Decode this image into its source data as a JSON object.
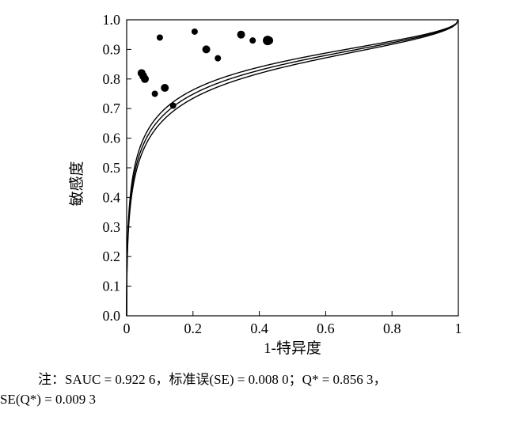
{
  "chart_data": {
    "type": "scatter",
    "xlabel": "1-特异度",
    "ylabel": "敏感度",
    "xlim": [
      0,
      1
    ],
    "ylim": [
      0,
      1
    ],
    "x_ticks": [
      "0",
      "0.2",
      "0.4",
      "0.6",
      "0.8",
      "1"
    ],
    "y_ticks": [
      "0.0",
      "0.1",
      "0.2",
      "0.3",
      "0.4",
      "0.5",
      "0.6",
      "0.7",
      "0.8",
      "0.9",
      "1.0"
    ],
    "grid": false,
    "legend": "none",
    "points": [
      {
        "x": 0.045,
        "y": 0.82,
        "size": 5
      },
      {
        "x": 0.05,
        "y": 0.81,
        "size": 5
      },
      {
        "x": 0.055,
        "y": 0.8,
        "size": 5
      },
      {
        "x": 0.085,
        "y": 0.75,
        "size": 4
      },
      {
        "x": 0.1,
        "y": 0.94,
        "size": 4
      },
      {
        "x": 0.115,
        "y": 0.77,
        "size": 5
      },
      {
        "x": 0.14,
        "y": 0.71,
        "size": 4
      },
      {
        "x": 0.205,
        "y": 0.96,
        "size": 4
      },
      {
        "x": 0.24,
        "y": 0.9,
        "size": 5
      },
      {
        "x": 0.275,
        "y": 0.87,
        "size": 4
      },
      {
        "x": 0.345,
        "y": 0.95,
        "size": 5
      },
      {
        "x": 0.38,
        "y": 0.93,
        "size": 4
      },
      {
        "x": 0.425,
        "y": 0.93,
        "size": 6
      },
      {
        "x": 0.43,
        "y": 0.93,
        "size": 5
      }
    ],
    "curves": [
      {
        "role": "upper",
        "q": 0.8656
      },
      {
        "role": "sroc",
        "q": 0.8563
      },
      {
        "role": "lower",
        "q": 0.847
      }
    ],
    "point_color": "#000000",
    "line_color": "#000000"
  },
  "note": {
    "line1": "注：SAUC = 0.922 6，标准误(SE) = 0.008 0；Q* = 0.856 3，",
    "line2": "SE(Q*) = 0.009 3"
  }
}
